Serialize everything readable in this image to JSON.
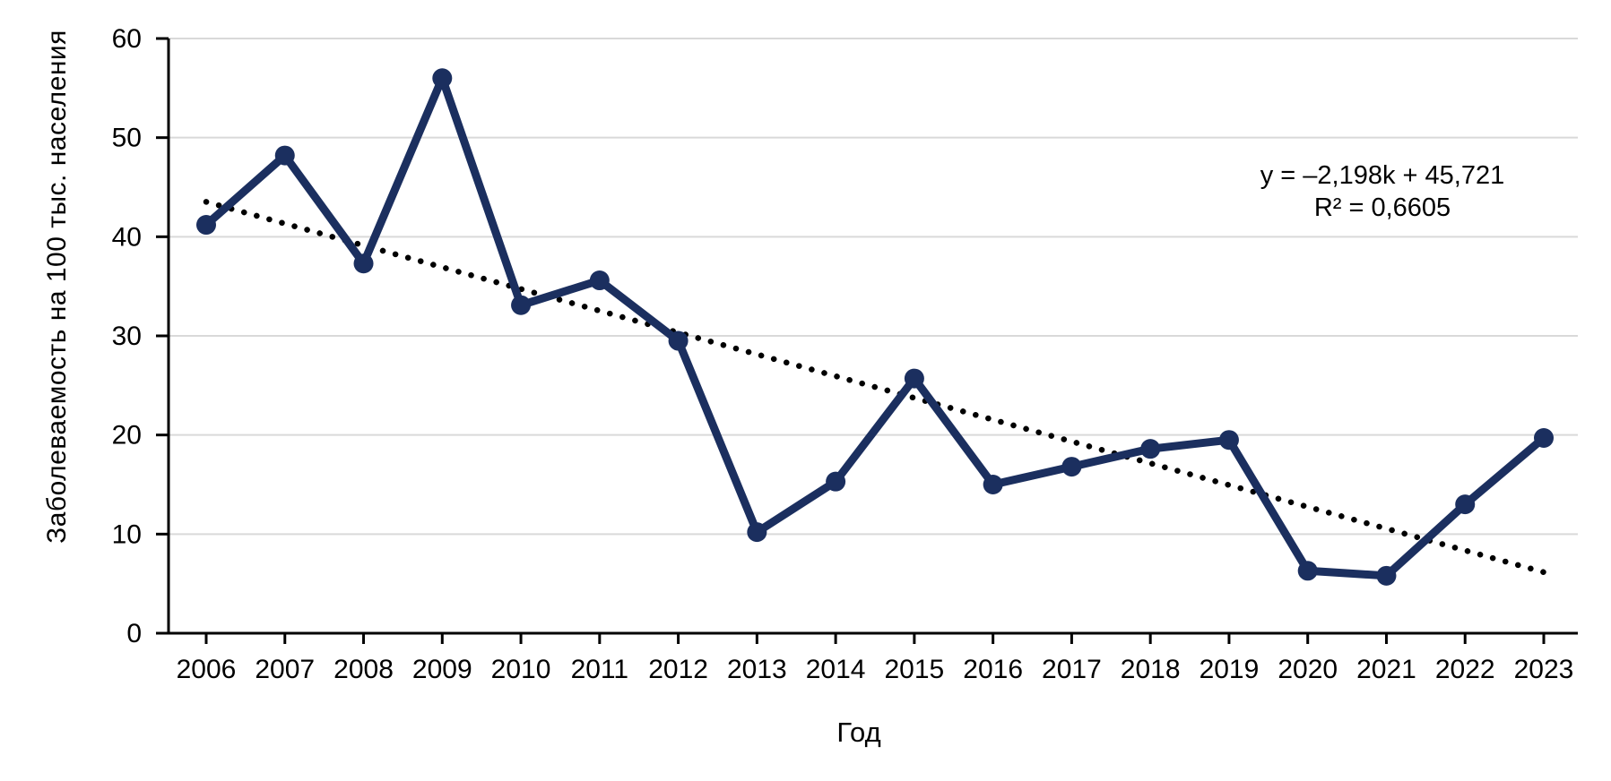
{
  "page": {
    "background": "#FFFFFF"
  },
  "chart_data": {
    "type": "line",
    "title": "",
    "xlabel": "Год",
    "ylabel": "Заболеваемость на 100 тыс. населения",
    "categories": [
      "2006",
      "2007",
      "2008",
      "2009",
      "2010",
      "2011",
      "2012",
      "2013",
      "2014",
      "2015",
      "2016",
      "2017",
      "2018",
      "2019",
      "2020",
      "2021",
      "2022",
      "2023"
    ],
    "series": [
      {
        "name": "Заболеваемость на 100 тыс. населения",
        "values": [
          41.2,
          48.2,
          37.3,
          56.0,
          33.1,
          35.6,
          29.5,
          10.2,
          15.3,
          25.7,
          15.0,
          16.8,
          18.6,
          19.5,
          6.3,
          5.8,
          13.0,
          19.7
        ],
        "color": "#1B2F5F",
        "marker": "circle",
        "marker_radius": 11,
        "line_width": 9
      }
    ],
    "trendline": {
      "equation": "y = –2,198k + 45,721",
      "r_squared_label": "R² = 0,6605",
      "slope": -2.198,
      "intercept": 45.721,
      "style": "dotted",
      "color": "#000000"
    },
    "ylim": [
      0,
      60
    ],
    "yticks": [
      0,
      10,
      20,
      30,
      40,
      50,
      60
    ],
    "grid": "horizontal",
    "gridline_color": "#D9D9D9",
    "axis_color": "#000000",
    "tick_label_font_size": 29,
    "legend": "none"
  }
}
